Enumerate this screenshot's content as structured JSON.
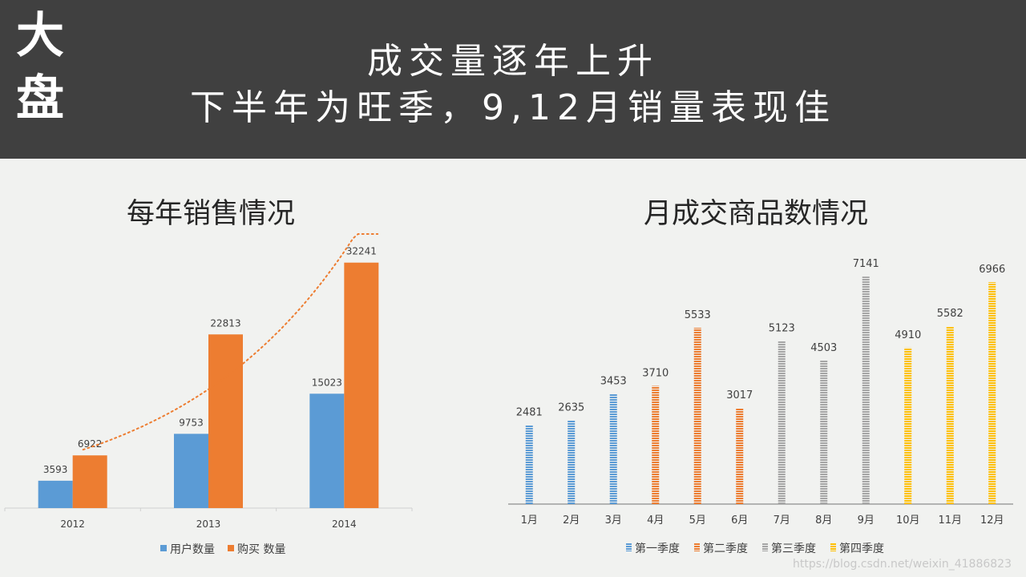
{
  "banner": {
    "side_title": "大盘",
    "headline_1": "成交量逐年上升",
    "headline_2": "下半年为旺季，9,12月销量表现佳"
  },
  "chart_data": [
    {
      "type": "bar",
      "title": "每年销售情况",
      "categories": [
        "2012",
        "2013",
        "2014"
      ],
      "series": [
        {
          "name": "用户数量",
          "values": [
            3593,
            9753,
            15023
          ],
          "color": "#5b9bd5"
        },
        {
          "name": "购买 数量",
          "values": [
            6922,
            22813,
            32241
          ],
          "color": "#ed7d31"
        }
      ],
      "trendline": {
        "series": "购买 数量",
        "style": "dotted",
        "color": "#ed7d31"
      },
      "ylim": [
        0,
        36000
      ],
      "legend": "bottom",
      "grid": false
    },
    {
      "type": "bar",
      "title": "月成交商品数情况",
      "categories": [
        "1月",
        "2月",
        "3月",
        "4月",
        "5月",
        "6月",
        "7月",
        "8月",
        "9月",
        "10月",
        "11月",
        "12月"
      ],
      "values": [
        2481,
        2635,
        3453,
        3710,
        5533,
        3017,
        5123,
        4503,
        7141,
        4910,
        5582,
        6966
      ],
      "groups": [
        {
          "name": "第一季度",
          "months": [
            0,
            1,
            2
          ],
          "color": "#5b9bd5"
        },
        {
          "name": "第二季度",
          "months": [
            3,
            4,
            5
          ],
          "color": "#ed7d31"
        },
        {
          "name": "第三季度",
          "months": [
            6,
            7,
            8
          ],
          "color": "#a5a5a5"
        },
        {
          "name": "第四季度",
          "months": [
            9,
            10,
            11
          ],
          "color": "#ffc000"
        }
      ],
      "ylim": [
        0,
        8000
      ],
      "legend": "bottom",
      "grid": false
    }
  ],
  "watermark": "https://blog.csdn.net/weixin_41886823"
}
